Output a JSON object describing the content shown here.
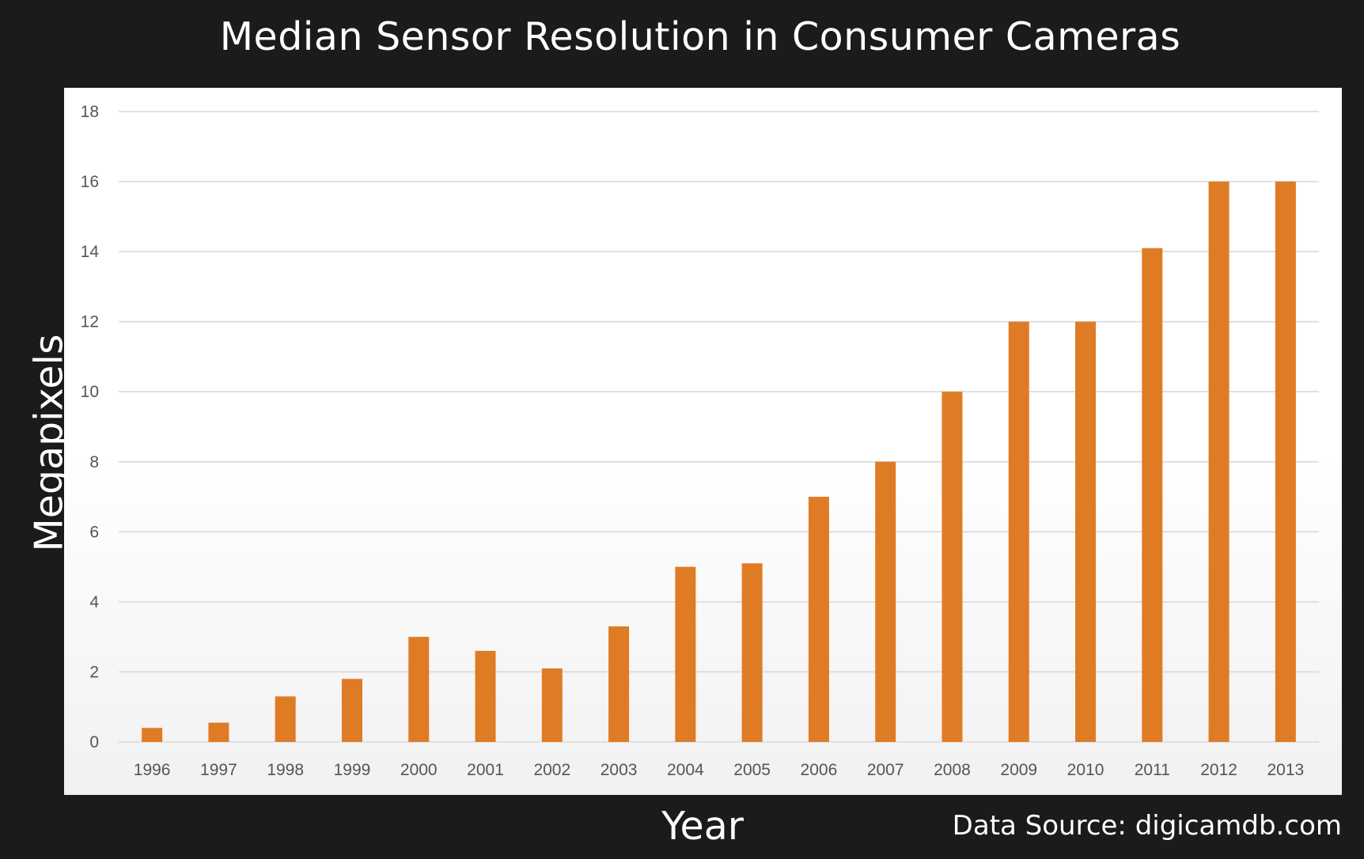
{
  "chart_data": {
    "type": "bar",
    "title": "Median Sensor Resolution in Consumer Cameras",
    "xlabel": "Year",
    "ylabel": "Megapixels",
    "categories": [
      "1996",
      "1997",
      "1998",
      "1999",
      "2000",
      "2001",
      "2002",
      "2003",
      "2004",
      "2005",
      "2006",
      "2007",
      "2008",
      "2009",
      "2010",
      "2011",
      "2012",
      "2013"
    ],
    "values": [
      0.4,
      0.55,
      1.3,
      1.8,
      3.0,
      2.6,
      2.1,
      3.3,
      5.0,
      5.1,
      7.0,
      8.0,
      10.0,
      12.0,
      12.0,
      14.1,
      16.0,
      16.0
    ],
    "ylim": [
      0,
      18
    ],
    "yticks": [
      0,
      2,
      4,
      6,
      8,
      10,
      12,
      14,
      16,
      18
    ],
    "grid": true,
    "legend": "none",
    "bar_color": "#e07b25"
  },
  "source_note": "Data Source: digicamdb.com",
  "colors": {
    "background": "#1b1b1b",
    "plot_background": "#ffffff",
    "gridline": "#d9d9d9",
    "tick_text": "#555555",
    "title_text": "#ffffff"
  }
}
